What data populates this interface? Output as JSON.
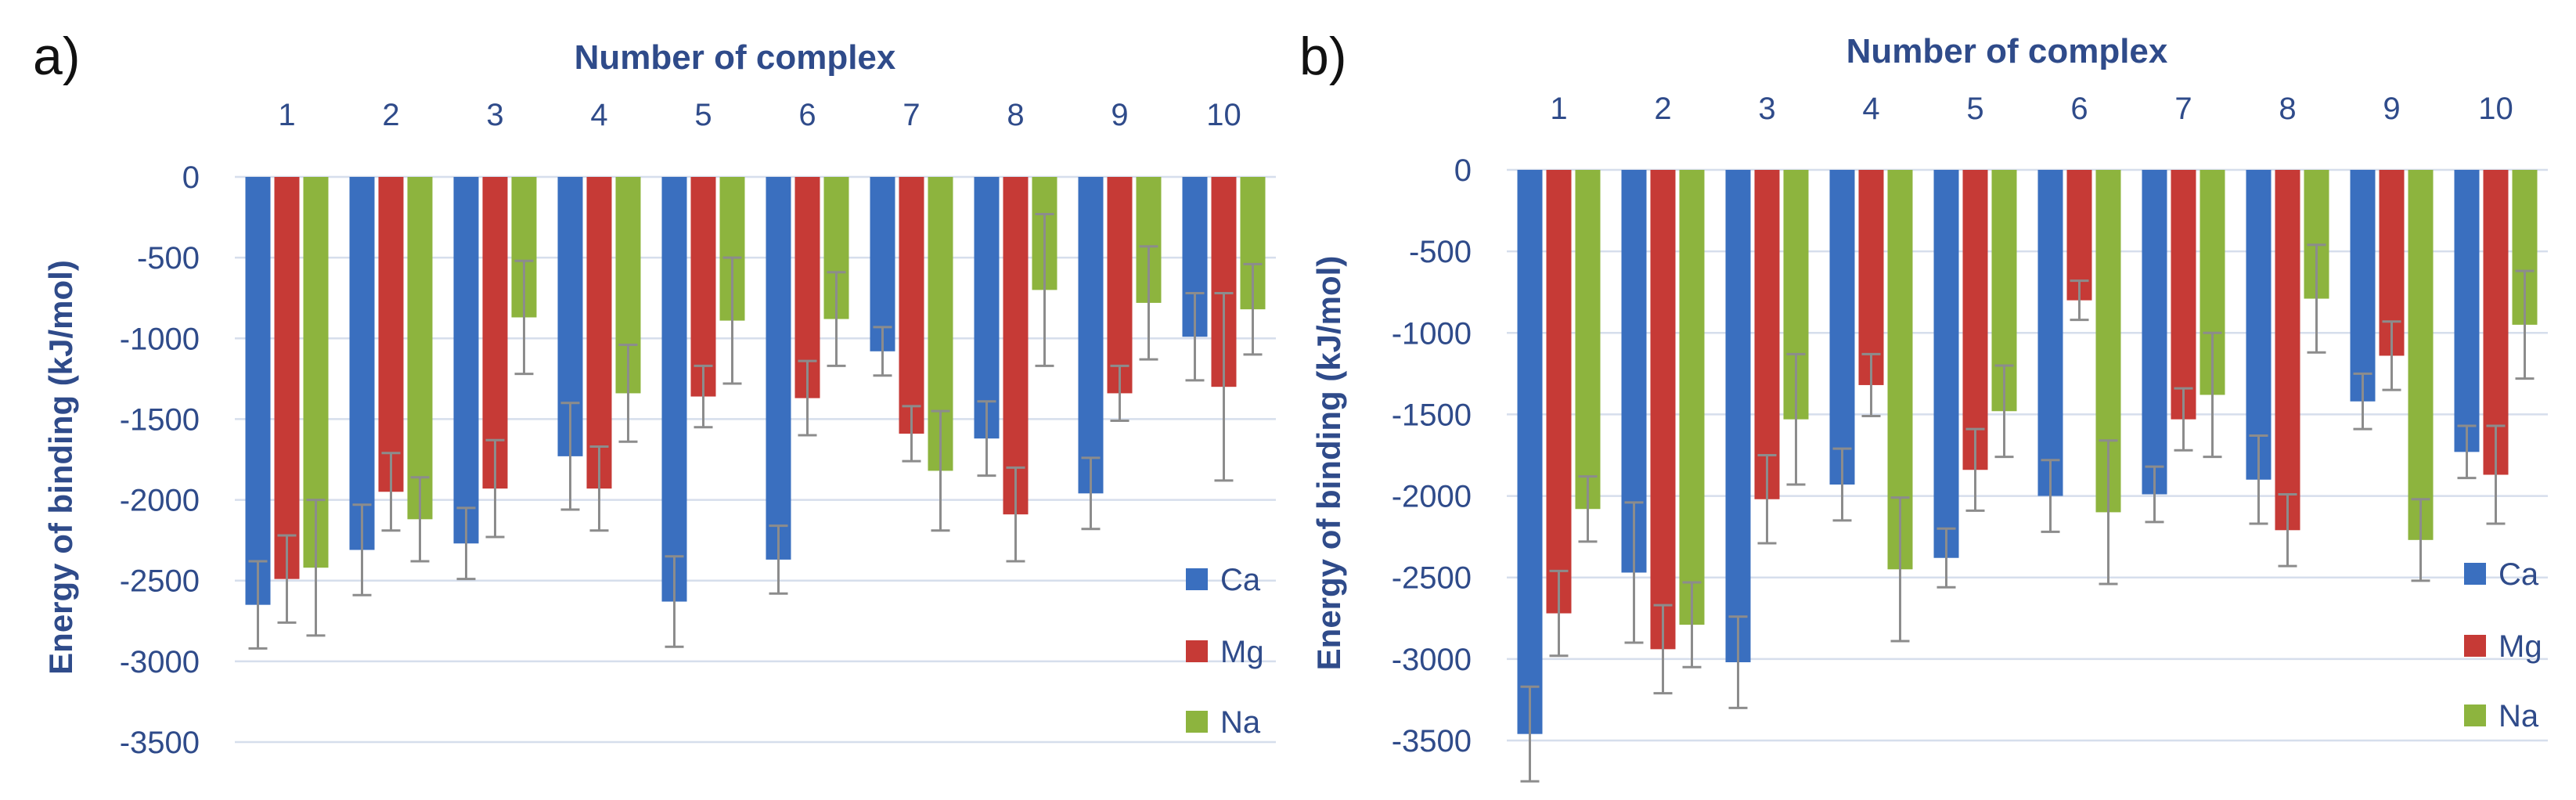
{
  "chart_data": [
    {
      "panel_label": "a)",
      "type": "bar",
      "title": "",
      "xlabel": "Number of complex",
      "ylabel": "Energy of binding (kJ/mol)",
      "categories": [
        "1",
        "2",
        "3",
        "4",
        "5",
        "6",
        "7",
        "8",
        "9",
        "10"
      ],
      "ylim": [
        -3500,
        0
      ],
      "yticks": [
        "0",
        "-500",
        "-1000",
        "-1500",
        "-2000",
        "-2500",
        "-3000",
        "-3500"
      ],
      "ytick_values": [
        0,
        -500,
        -1000,
        -1500,
        -2000,
        -2500,
        -3000,
        -3500
      ],
      "grid": true,
      "legend_position": "bottom-right",
      "series": [
        {
          "name": "Ca",
          "color": "#3A6FBF",
          "values": [
            -2650,
            -2310,
            -2270,
            -1730,
            -2630,
            -2370,
            -1080,
            -1620,
            -1960,
            -990
          ],
          "errors": [
            270,
            280,
            220,
            330,
            280,
            210,
            150,
            230,
            220,
            270
          ]
        },
        {
          "name": "Mg",
          "color": "#C63A36",
          "values": [
            -2490,
            -1950,
            -1930,
            -1930,
            -1360,
            -1370,
            -1590,
            -2090,
            -1340,
            -1300
          ],
          "errors": [
            270,
            240,
            300,
            260,
            190,
            230,
            170,
            290,
            170,
            580
          ]
        },
        {
          "name": "Na",
          "color": "#8DB43E",
          "values": [
            -2420,
            -2120,
            -870,
            -1340,
            -890,
            -880,
            -1820,
            -700,
            -780,
            -820
          ],
          "errors": [
            420,
            260,
            350,
            300,
            390,
            290,
            370,
            470,
            350,
            280
          ]
        }
      ]
    },
    {
      "panel_label": "b)",
      "type": "bar",
      "title": "",
      "xlabel": "Number of complex",
      "ylabel": "Energy of binding (kJ/mol)",
      "categories": [
        "1",
        "2",
        "3",
        "4",
        "5",
        "6",
        "7",
        "8",
        "9",
        "10"
      ],
      "ylim": [
        -3500,
        0
      ],
      "yticks": [
        "0",
        "-500",
        "-1000",
        "-1500",
        "-2000",
        "-2500",
        "-3000",
        "-3500"
      ],
      "ytick_values": [
        0,
        -500,
        -1000,
        -1500,
        -2000,
        -2500,
        -3000,
        -3500
      ],
      "grid": true,
      "legend_position": "bottom-right",
      "series": [
        {
          "name": "Ca",
          "color": "#3A6FBF",
          "values": [
            -3460,
            -2470,
            -3020,
            -1930,
            -2380,
            -2000,
            -1990,
            -1900,
            -1420,
            -1730
          ],
          "errors": [
            290,
            430,
            280,
            220,
            180,
            220,
            170,
            270,
            170,
            160
          ]
        },
        {
          "name": "Mg",
          "color": "#C63A36",
          "values": [
            -2720,
            -2940,
            -2020,
            -1320,
            -1840,
            -800,
            -1530,
            -2210,
            -1140,
            -1870
          ],
          "errors": [
            260,
            270,
            270,
            190,
            250,
            120,
            190,
            220,
            210,
            300
          ]
        },
        {
          "name": "Na",
          "color": "#8DB43E",
          "values": [
            -2080,
            -2790,
            -1530,
            -2450,
            -1480,
            -2100,
            -1380,
            -790,
            -2270,
            -950
          ],
          "errors": [
            200,
            260,
            400,
            440,
            280,
            440,
            380,
            330,
            250,
            330
          ]
        }
      ]
    }
  ]
}
